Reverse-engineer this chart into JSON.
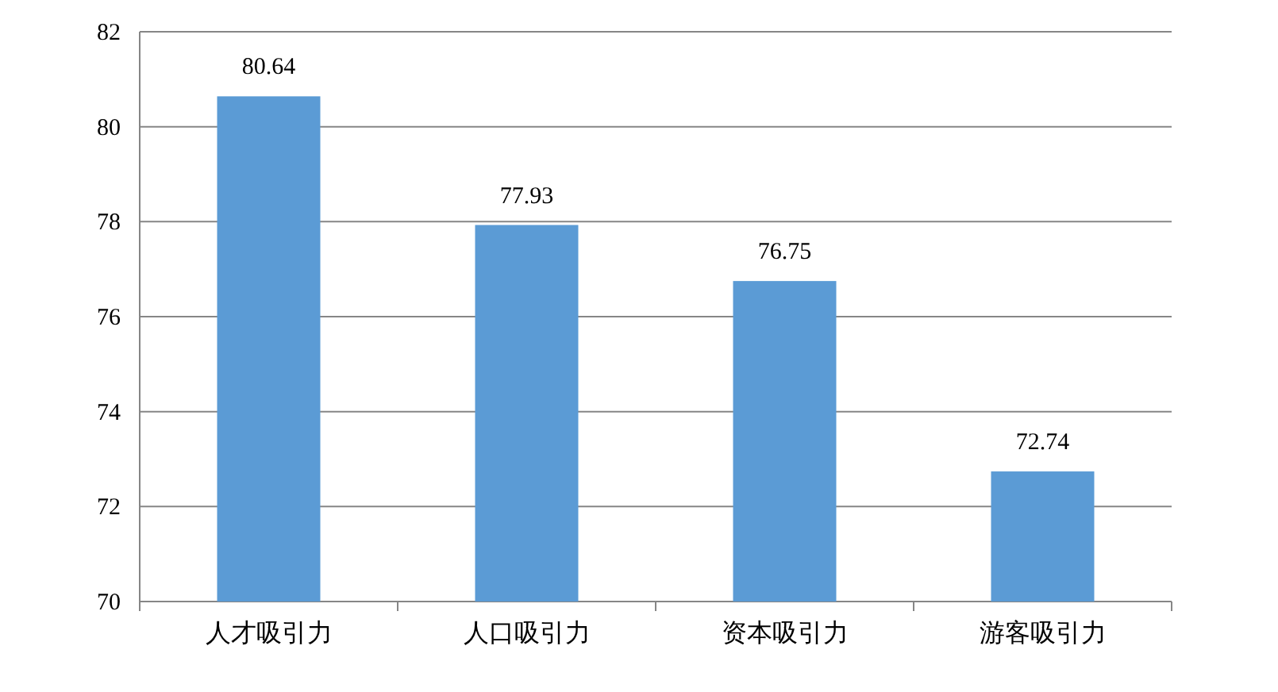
{
  "chart_data": {
    "type": "bar",
    "categories": [
      "人才吸引力",
      "人口吸引力",
      "资本吸引力",
      "游客吸引力"
    ],
    "values": [
      80.64,
      77.93,
      76.75,
      72.74
    ],
    "color": "#5b9bd5",
    "ylim": [
      70,
      82
    ],
    "yticks": [
      70,
      72,
      74,
      76,
      78,
      80,
      82
    ],
    "grid": "y",
    "data_labels": true
  }
}
